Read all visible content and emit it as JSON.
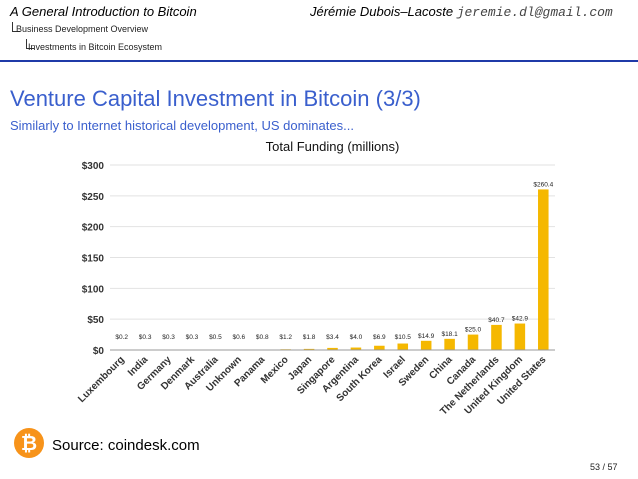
{
  "header": {
    "title": "A General Introduction to Bitcoin",
    "author": "Jérémie Dubois–Lacoste",
    "email": "jeremie.dl@gmail.com",
    "crumb1": "Business Development Overview",
    "crumb2": "Investments in Bitcoin Ecosystem"
  },
  "slide": {
    "title": "Venture Capital Investment in Bitcoin (3/3)",
    "subtitle": "Similarly to Internet historical development, US dominates..."
  },
  "footer": {
    "source": "Source: coindesk.com",
    "page": "53 / 57",
    "logo_glyph": "₿"
  },
  "colors": {
    "bar": "#f5b800",
    "accent": "#3a5fcd"
  },
  "chart_data": {
    "type": "bar",
    "title": "Total Funding (millions)",
    "xlabel": "",
    "ylabel": "",
    "ylim": [
      0,
      300
    ],
    "yticks": [
      0,
      50,
      100,
      150,
      200,
      250,
      300
    ],
    "ytick_labels": [
      "$0",
      "$50",
      "$100",
      "$150",
      "$200",
      "$250",
      "$300"
    ],
    "grid": true,
    "categories": [
      "Luxembourg",
      "India",
      "Germany",
      "Denmark",
      "Australia",
      "Unknown",
      "Panama",
      "Mexico",
      "Japan",
      "Singapore",
      "Argentina",
      "South Korea",
      "Israel",
      "Sweden",
      "China",
      "Canada",
      "The Netherlands",
      "United Kingdom",
      "United States"
    ],
    "values": [
      0.2,
      0.3,
      0.3,
      0.3,
      0.5,
      0.6,
      0.8,
      1.2,
      1.8,
      3.4,
      4.0,
      6.9,
      10.5,
      14.9,
      18.1,
      25.0,
      40.7,
      42.9,
      260.4
    ],
    "data_labels": [
      "$0.2",
      "$0.3",
      "$0.3",
      "$0.3",
      "$0.5",
      "$0.6",
      "$0.8",
      "$1.2",
      "$1.8",
      "$3.4",
      "$4.0",
      "$6.9",
      "$10.5",
      "$14.9",
      "$18.1",
      "$25.0",
      "$40.7",
      "$42.9",
      "$260.4"
    ]
  }
}
